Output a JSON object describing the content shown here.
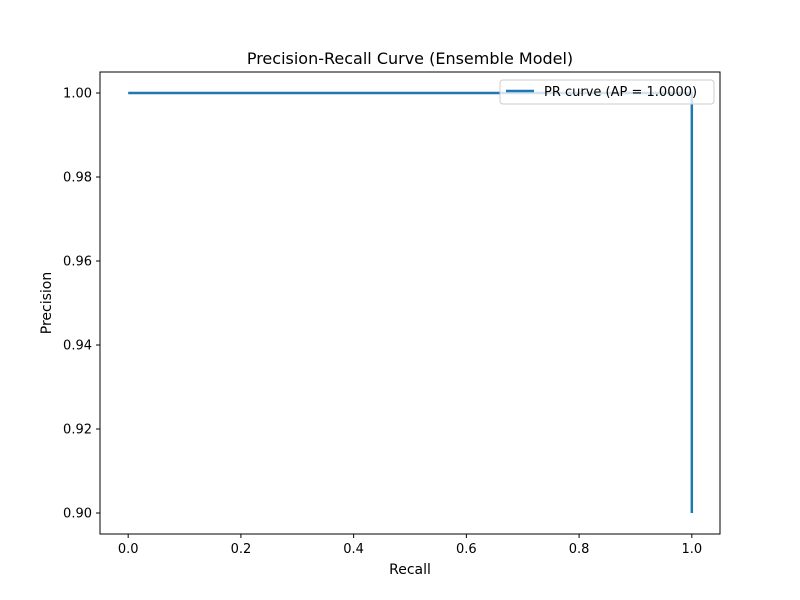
{
  "chart_data": {
    "type": "line",
    "title": "Precision-Recall Curve (Ensemble Model)",
    "xlabel": "Recall",
    "ylabel": "Precision",
    "xlim": [
      -0.05,
      1.05
    ],
    "ylim": [
      0.895,
      1.005
    ],
    "xticks": [
      0.0,
      0.2,
      0.4,
      0.6,
      0.8,
      1.0
    ],
    "xtick_labels": [
      "0.0",
      "0.2",
      "0.4",
      "0.6",
      "0.8",
      "1.0"
    ],
    "yticks": [
      0.9,
      0.92,
      0.94,
      0.96,
      0.98,
      1.0
    ],
    "ytick_labels": [
      "0.90",
      "0.92",
      "0.94",
      "0.96",
      "0.98",
      "1.00"
    ],
    "grid": false,
    "legend_position": "upper right",
    "series": [
      {
        "name": "PR curve (AP = 1.0000)",
        "color": "#1f77b4",
        "x": [
          0.0,
          1.0,
          1.0
        ],
        "y": [
          1.0,
          1.0,
          0.9
        ]
      }
    ]
  }
}
